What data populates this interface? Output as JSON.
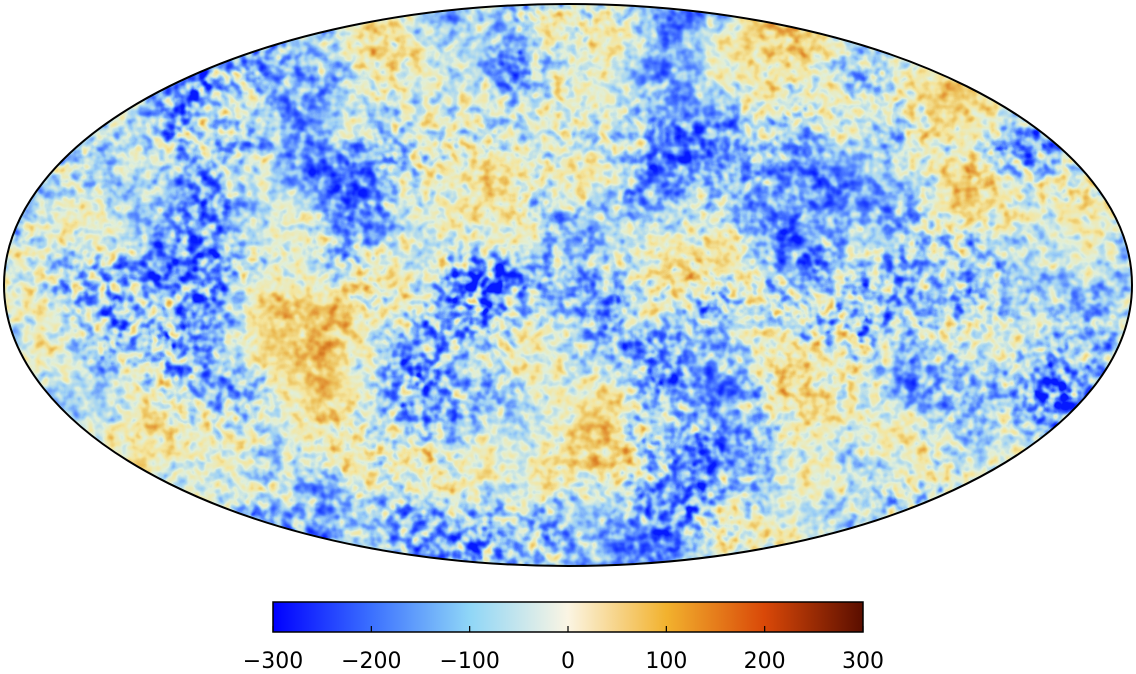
{
  "map": {
    "projection": "mollweide",
    "colors": {
      "deep_blue": "#0a1cff",
      "blue": "#3a7bff",
      "light_blue": "#8fd3f5",
      "cream": "#f7f1dc",
      "yellow": "#e8c070",
      "orange": "#d9822b",
      "brown": "#6b1a06"
    }
  },
  "colorbar": {
    "min": -300,
    "max": 300,
    "tick_values": [
      -300,
      -200,
      -100,
      0,
      100,
      200,
      300
    ],
    "tick_labels": [
      "−300",
      "−200",
      "−100",
      "0",
      "100",
      "200",
      "300"
    ],
    "stops": [
      "#0000ff",
      "#3b70ff",
      "#8fd6f7",
      "#fbf5e3",
      "#f2b22e",
      "#d94808",
      "#5a0e00"
    ]
  }
}
